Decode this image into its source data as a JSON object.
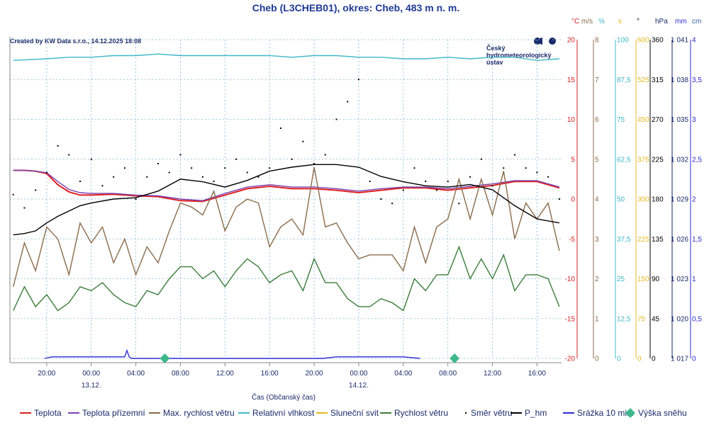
{
  "chart_data": {
    "type": "line",
    "title": "Cheb (L3CHEB01), okres: Cheb, 483 m n. m.",
    "created_note": "Created by KW Data s.r.o., 14.12.2025 18:08",
    "logo_text": [
      "Český",
      "hydrometeorologický",
      "ústav"
    ],
    "xlabel": "Čas (Občanský čas)",
    "x_ticks": [
      "20:00",
      "00:00",
      "04:00",
      "08:00",
      "12:00",
      "16:00",
      "20:00",
      "00:00",
      "04:00",
      "08:00",
      "12:00",
      "16:00"
    ],
    "x_tick_hours": [
      20,
      24,
      28,
      32,
      36,
      40,
      44,
      48,
      52,
      56,
      60,
      64
    ],
    "x_dates": [
      {
        "hour": 24,
        "label": "13.12."
      },
      {
        "hour": 48,
        "label": "14.12."
      }
    ],
    "x_range_hours": [
      16.7,
      66.2
    ],
    "grid": true,
    "axes": [
      {
        "unit": "°C",
        "color": "#d62020",
        "min": -20,
        "max": 20,
        "ticks": [
          "-20",
          "-15",
          "-10",
          "-5",
          "0",
          "5",
          "10",
          "15",
          "20"
        ]
      },
      {
        "unit": "m/s",
        "color": "#8b6b4a",
        "min": 0,
        "max": 8,
        "ticks": [
          "0",
          "1",
          "2",
          "3",
          "4",
          "5",
          "6",
          "7",
          "8"
        ]
      },
      {
        "unit": "%",
        "color": "#3fb8c8",
        "min": 0,
        "max": 100,
        "ticks": [
          "0",
          "12,5",
          "25",
          "37,5",
          "50",
          "62,5",
          "75",
          "87,5",
          "100"
        ]
      },
      {
        "unit": "s",
        "color": "#e8b820",
        "min": 0,
        "max": 600,
        "ticks": [
          "0",
          "75",
          "150",
          "225",
          "300",
          "375",
          "450",
          "525",
          "600"
        ]
      },
      {
        "unit": "°",
        "color": "#000000",
        "min": 0,
        "max": 360,
        "ticks": [
          "0",
          "45",
          "90",
          "135",
          "180",
          "225",
          "270",
          "315",
          "360"
        ]
      },
      {
        "unit": "hPa",
        "color": "#1a2a6a",
        "min": 1017,
        "max": 1041,
        "ticks": [
          "1 017",
          "1 020",
          "1 023",
          "1 026",
          "1 029",
          "1 032",
          "1 035",
          "1 038",
          "1 041"
        ]
      },
      {
        "unit": "mm",
        "color": "#2b2bd0",
        "min": 0,
        "max": 4,
        "ticks": [
          "0",
          "0,5",
          "1",
          "1,5",
          "2",
          "2,5",
          "3",
          "3,5",
          "4"
        ]
      },
      {
        "unit": "cm",
        "color": "#2b5fa8",
        "min": 0,
        "max": 4,
        "ticks": []
      }
    ],
    "series": [
      {
        "name": "Teplota",
        "color": "#e02020",
        "axis": "°C",
        "x": [
          17,
          18,
          19,
          20,
          21,
          22,
          23,
          24,
          26,
          28,
          30,
          32,
          34,
          36,
          38,
          40,
          42,
          44,
          46,
          48,
          50,
          52,
          54,
          56,
          58,
          60,
          62,
          64,
          66
        ],
        "values": [
          3.6,
          3.6,
          3.5,
          3.2,
          1.8,
          0.9,
          0.5,
          0.5,
          0.6,
          0.4,
          0.3,
          -0.2,
          -0.3,
          0.5,
          1.3,
          1.6,
          1.3,
          1.3,
          1.1,
          0.8,
          1.1,
          1.4,
          1.4,
          1.1,
          1.4,
          1.7,
          2.2,
          2.2,
          1.4
        ]
      },
      {
        "name": "Teplota přízemní",
        "color": "#7a3fb0",
        "axis": "°C",
        "x": [
          17,
          18,
          19,
          20,
          21,
          22,
          23,
          24,
          26,
          28,
          30,
          32,
          34,
          36,
          38,
          40,
          42,
          44,
          46,
          48,
          50,
          52,
          54,
          56,
          58,
          60,
          62,
          64,
          66
        ],
        "values": [
          3.6,
          3.6,
          3.5,
          3.3,
          2.2,
          1.2,
          0.8,
          0.7,
          0.7,
          0.5,
          0.4,
          0.0,
          -0.2,
          0.7,
          1.5,
          1.8,
          1.5,
          1.5,
          1.3,
          1.0,
          1.3,
          1.5,
          1.5,
          1.3,
          1.6,
          1.9,
          2.3,
          2.3,
          1.5
        ]
      },
      {
        "name": "Max. rychlost větru",
        "color": "#8b6b4a",
        "axis": "m/s",
        "x": [
          17,
          18,
          19,
          20,
          21,
          22,
          23,
          24,
          25,
          26,
          27,
          28,
          29,
          30,
          31,
          32,
          33,
          34,
          35,
          36,
          37,
          38,
          39,
          40,
          41,
          42,
          43,
          44,
          45,
          46,
          47,
          48,
          49,
          50,
          51,
          52,
          53,
          54,
          55,
          56,
          57,
          58,
          59,
          60,
          61,
          62,
          63,
          64,
          65,
          66
        ],
        "values": [
          1.8,
          2.9,
          2.2,
          3.3,
          3.0,
          2.1,
          3.4,
          2.9,
          3.3,
          2.4,
          3.0,
          2.1,
          2.8,
          2.4,
          3.2,
          3.9,
          3.8,
          3.6,
          4.2,
          3.2,
          3.8,
          4.0,
          3.9,
          2.8,
          3.3,
          3.5,
          3.1,
          4.8,
          3.3,
          3.4,
          2.9,
          2.5,
          2.6,
          2.6,
          2.6,
          2.2,
          3.3,
          2.4,
          3.3,
          3.5,
          4.5,
          3.5,
          4.5,
          3.6,
          4.7,
          3.0,
          3.9,
          3.5,
          3.9,
          2.7
        ]
      },
      {
        "name": "Relativní vlhkost",
        "color": "#3fb8c8",
        "axis": "%",
        "x": [
          17,
          20,
          22,
          24,
          26,
          28,
          30,
          32,
          34,
          36,
          38,
          40,
          42,
          44,
          46,
          48,
          50,
          52,
          54,
          56,
          58,
          60,
          62,
          64,
          66
        ],
        "values": [
          93.5,
          94,
          94.5,
          94.5,
          95,
          95,
          95.5,
          95,
          95,
          95,
          95,
          95,
          94.5,
          95,
          95,
          94.5,
          94.5,
          94,
          94,
          94.5,
          94,
          94.5,
          94.5,
          93.5,
          94
        ]
      },
      {
        "name": "Sluneční svit",
        "color": "#e8b820",
        "axis": "s",
        "x": [],
        "values": []
      },
      {
        "name": "Rychlost větru",
        "color": "#3a7d3a",
        "axis": "m/s",
        "x": [
          17,
          18,
          19,
          20,
          21,
          22,
          23,
          24,
          25,
          26,
          27,
          28,
          29,
          30,
          31,
          32,
          33,
          34,
          35,
          36,
          37,
          38,
          39,
          40,
          41,
          42,
          43,
          44,
          45,
          46,
          47,
          48,
          49,
          50,
          51,
          52,
          53,
          54,
          55,
          56,
          57,
          58,
          59,
          60,
          61,
          62,
          63,
          64,
          65,
          66
        ],
        "values": [
          1.2,
          1.8,
          1.3,
          1.6,
          1.2,
          1.4,
          1.8,
          1.7,
          1.9,
          1.6,
          1.4,
          1.3,
          1.7,
          1.6,
          2.0,
          2.3,
          2.3,
          2.0,
          2.2,
          1.8,
          2.2,
          2.5,
          2.3,
          1.9,
          2.1,
          2.2,
          1.7,
          2.5,
          1.9,
          1.9,
          1.5,
          1.3,
          1.3,
          1.5,
          1.4,
          1.2,
          2.0,
          1.7,
          2.1,
          2.1,
          2.8,
          2.0,
          2.5,
          2.0,
          2.6,
          1.7,
          2.1,
          2.1,
          2.0,
          1.3
        ]
      },
      {
        "name": "Směr větru",
        "color": "#000000",
        "axis": "°",
        "style": "dots",
        "x": [
          17,
          18,
          19,
          20,
          21,
          22,
          23,
          24,
          25,
          26,
          27,
          28,
          29,
          30,
          31,
          32,
          33,
          34,
          35,
          36,
          37,
          38,
          39,
          40,
          41,
          42,
          43,
          44,
          45,
          46,
          47,
          48,
          49,
          50,
          51,
          52,
          53,
          54,
          55,
          56,
          57,
          58,
          59,
          60,
          61,
          62,
          63,
          64,
          65,
          66
        ],
        "values": [
          185,
          170,
          190,
          210,
          240,
          230,
          200,
          225,
          195,
          205,
          215,
          180,
          205,
          220,
          210,
          230,
          215,
          205,
          200,
          215,
          225,
          210,
          205,
          215,
          260,
          225,
          245,
          220,
          230,
          270,
          290,
          315,
          200,
          180,
          175,
          190,
          215,
          200,
          190,
          200,
          175,
          205,
          225,
          195,
          215,
          230,
          215,
          210,
          205,
          180
        ]
      },
      {
        "name": "P_hm",
        "color": "#000000",
        "axis": "hPa",
        "x": [
          17,
          18,
          19,
          20,
          21,
          22,
          23,
          24,
          26,
          28,
          30,
          32,
          34,
          36,
          38,
          40,
          42,
          44,
          46,
          48,
          50,
          52,
          54,
          56,
          58,
          60,
          62,
          64,
          66
        ],
        "values": [
          1026.3,
          1026.4,
          1026.6,
          1027.2,
          1027.7,
          1028.1,
          1028.5,
          1028.7,
          1029.0,
          1029.1,
          1029.6,
          1030.5,
          1030.3,
          1029.9,
          1030.4,
          1031.1,
          1031.4,
          1031.6,
          1031.6,
          1031.4,
          1030.7,
          1030.3,
          1030.0,
          1029.9,
          1030.1,
          1029.7,
          1028.5,
          1027.5,
          1027.2
        ]
      },
      {
        "name": "Srážka 10 min.",
        "color": "#2b2bd0",
        "axis": "mm",
        "x": [
          19.8,
          20.5,
          22,
          24,
          26,
          27,
          27.2,
          27.4,
          27.6,
          27.8,
          28,
          30,
          40,
          44.8,
          46,
          48,
          50,
          52,
          53.5
        ],
        "values": [
          0,
          0.02,
          0.02,
          0.02,
          0.02,
          0.02,
          0.1,
          0.02,
          0,
          0,
          0,
          0,
          0,
          0,
          0.02,
          0.02,
          0.02,
          0.02,
          0
        ]
      },
      {
        "name": "Výška sněhu",
        "color": "#3fb88c",
        "axis": "cm",
        "style": "diamond",
        "x": [
          30.6,
          56.6
        ],
        "values": [
          0,
          0
        ]
      }
    ]
  }
}
